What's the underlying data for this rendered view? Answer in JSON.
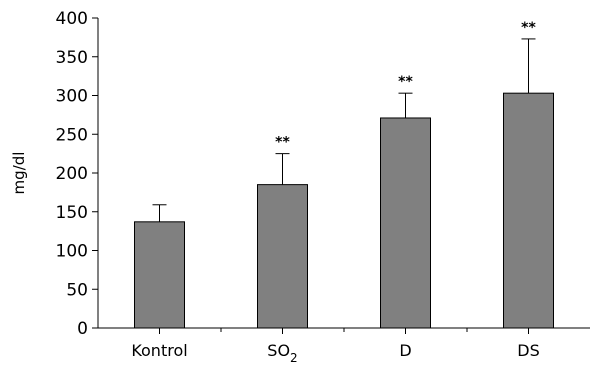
{
  "chart_data": {
    "type": "bar",
    "title": "",
    "xlabel": "",
    "ylabel": "mg/dl",
    "ylim": [
      0,
      400
    ],
    "yticks": [
      0,
      50,
      100,
      150,
      200,
      250,
      300,
      350,
      400
    ],
    "grid": false,
    "categories": [
      {
        "base": "Kontrol",
        "sub": ""
      },
      {
        "base": "SO",
        "sub": "2"
      },
      {
        "base": "D",
        "sub": ""
      },
      {
        "base": "DS",
        "sub": ""
      }
    ],
    "values": [
      137,
      185,
      271,
      303
    ],
    "errors": [
      22,
      40,
      32,
      70
    ],
    "significance": [
      "",
      "**",
      "**",
      "**"
    ],
    "bar_color": "#808080"
  }
}
